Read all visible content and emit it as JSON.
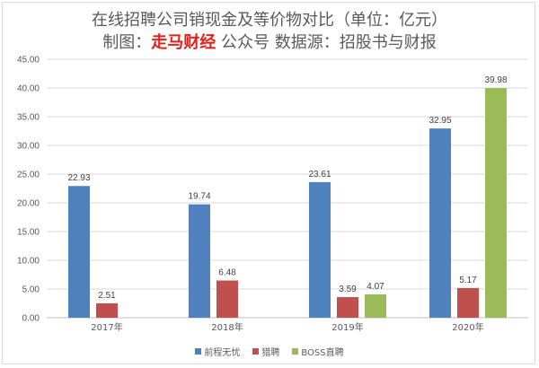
{
  "title": {
    "line1": "在线招聘公司销现金及等价物对比（单位：亿元）",
    "prefix": "制图：",
    "brand": "走马财经",
    "suffix": " 公众号  数据源：招股书与财报"
  },
  "colors": {
    "brand": "#e8201a",
    "series": [
      "#4f81bd",
      "#c0504d",
      "#9bbb59"
    ],
    "grid": "#d9d9d9"
  },
  "chart_data": {
    "type": "bar",
    "categories": [
      "2017年",
      "2018年",
      "2019年",
      "2020年"
    ],
    "series": [
      {
        "name": "前程无忧",
        "values": [
          22.93,
          19.74,
          23.61,
          32.95
        ]
      },
      {
        "name": "猎聘",
        "values": [
          2.51,
          6.48,
          3.59,
          5.17
        ]
      },
      {
        "name": "BOSS直聘",
        "values": [
          null,
          null,
          4.07,
          39.98
        ]
      }
    ],
    "ylim": [
      0,
      45
    ],
    "yticks": [
      "0.00",
      "5.00",
      "10.00",
      "15.00",
      "20.00",
      "25.00",
      "30.00",
      "35.00",
      "40.00",
      "45.00"
    ],
    "grid": true,
    "legend": "bottom",
    "data_labels": true
  }
}
